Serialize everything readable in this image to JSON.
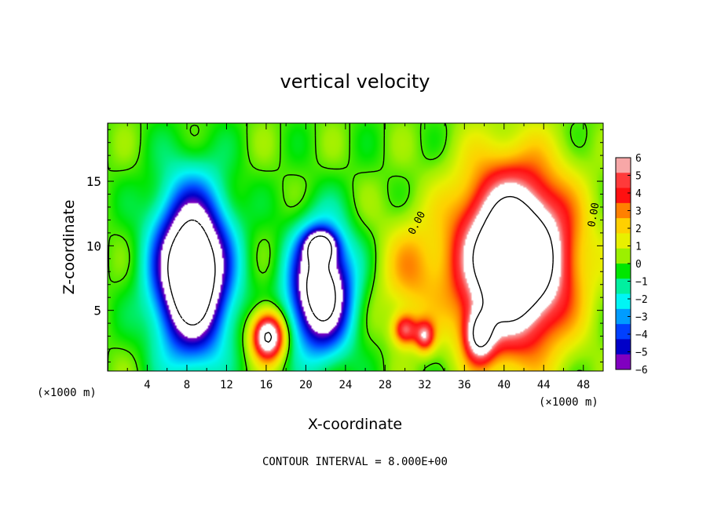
{
  "chart_data": {
    "type": "heatmap",
    "title": "vertical velocity",
    "xlabel": "X-coordinate",
    "ylabel": "Z-coordinate",
    "x_unit_note": "(×1000 m)",
    "footer": "CONTOUR INTERVAL = 8.000E+00",
    "contour_label": "0.00",
    "xlim": [
      0,
      50
    ],
    "ylim": [
      0.3,
      19.5
    ],
    "x_ticks": [
      "4",
      "8",
      "12",
      "16",
      "20",
      "24",
      "28",
      "32",
      "36",
      "40",
      "44",
      "48"
    ],
    "y_ticks": [
      "5",
      "10",
      "15"
    ],
    "colorbar": {
      "range": [
        -6,
        6
      ],
      "ticks": [
        "6",
        "5",
        "4",
        "3",
        "2",
        "1",
        "0",
        "−1",
        "−2",
        "−3",
        "−4",
        "−5",
        "−6"
      ],
      "colors": [
        "#f7a7a7",
        "#ff3a3a",
        "#ff1010",
        "#ff8000",
        "#ffd000",
        "#e8f000",
        "#9cf000",
        "#00e600",
        "#00f0a0",
        "#00f5f5",
        "#009cff",
        "#0040ff",
        "#0000c8",
        "#8000c0"
      ]
    },
    "field": {
      "background": 0,
      "features": [
        {
          "kind": "downdraft",
          "x": 8.5,
          "z": 8,
          "amp": -12,
          "sx": 3.6,
          "sz": 6
        },
        {
          "kind": "downdraft",
          "x": 21.5,
          "z": 6.5,
          "amp": -10,
          "sx": 3.0,
          "sz": 4.5
        },
        {
          "kind": "downdraft",
          "x": 21.5,
          "z": 10,
          "amp": -6,
          "sx": 1.5,
          "sz": 1.2
        },
        {
          "kind": "updraft",
          "x": 16.2,
          "z": 3,
          "amp": 9,
          "sx": 1.6,
          "sz": 1.8
        },
        {
          "kind": "updraft",
          "x": 41,
          "z": 9,
          "amp": 13,
          "sx": 5.5,
          "sz": 6.5
        },
        {
          "kind": "updraft",
          "x": 30,
          "z": 3.5,
          "amp": 5,
          "sx": 1.2,
          "sz": 1.2
        },
        {
          "kind": "updraft",
          "x": 32,
          "z": 3,
          "amp": 5,
          "sx": 1.0,
          "sz": 1.2
        },
        {
          "kind": "updraft",
          "x": 37.5,
          "z": 3,
          "amp": 6,
          "sx": 1.5,
          "sz": 2
        },
        {
          "kind": "updraft",
          "x": 30.5,
          "z": 8,
          "amp": 2.5,
          "sx": 3,
          "sz": 4
        }
      ]
    }
  }
}
